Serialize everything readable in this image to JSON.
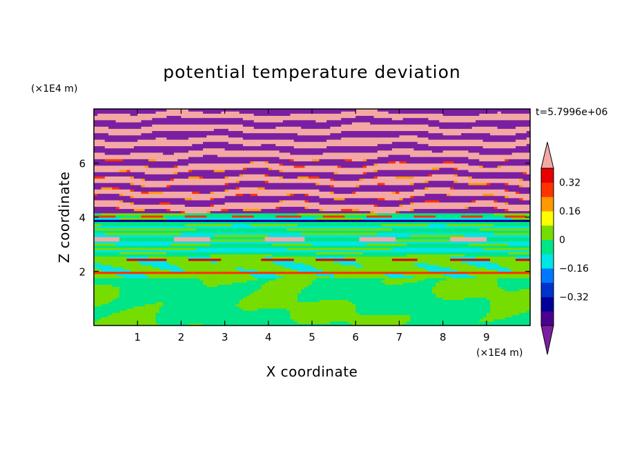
{
  "chart_data": {
    "type": "heatmap",
    "title": "potential temperature deviation",
    "xlabel": "X coordinate",
    "ylabel": "Z coordinate",
    "x_unit": "(×1E4 m)",
    "y_unit": "(×1E4 m)",
    "time_label": "t=5.7996e+06",
    "xlim": [
      0,
      10
    ],
    "ylim": [
      0,
      8
    ],
    "x_ticks": [
      "1",
      "2",
      "3",
      "4",
      "5",
      "6",
      "7",
      "8",
      "9"
    ],
    "y_ticks": [
      "2",
      "4",
      "6"
    ],
    "colorbar": {
      "levels": [
        -0.48,
        -0.4,
        -0.32,
        -0.24,
        -0.16,
        -0.08,
        0,
        0.08,
        0.16,
        0.24,
        0.32,
        0.4,
        0.48
      ],
      "colors": [
        "#7b1fa2",
        "#4b0091",
        "#000099",
        "#0033cc",
        "#0077ff",
        "#00e5e5",
        "#00e588",
        "#77dd00",
        "#ffff00",
        "#ff9900",
        "#ff3300",
        "#e60000",
        "#f4a8a4"
      ],
      "tick_labels": [
        "0.32",
        "0.16",
        "0",
        "−0.16",
        "−0.32"
      ],
      "extend": "both"
    },
    "field_description_bands": [
      {
        "z_range": [
          0,
          1.8
        ],
        "dominant_levels": [
          "0",
          "0.08"
        ]
      },
      {
        "z_range": [
          1.8,
          2.6
        ],
        "dominant_levels": [
          "0",
          "-0.08"
        ]
      },
      {
        "z_range": [
          2.6,
          4.2
        ],
        "dominant_levels": [
          "-0.08",
          "0",
          "-0.32"
        ]
      },
      {
        "z_range": [
          4.2,
          8.0
        ],
        "dominant_levels": [
          "0.48",
          "-0.48"
        ]
      }
    ]
  }
}
